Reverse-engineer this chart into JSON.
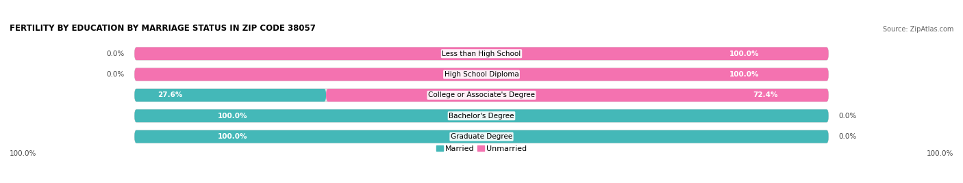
{
  "title": "FERTILITY BY EDUCATION BY MARRIAGE STATUS IN ZIP CODE 38057",
  "source": "Source: ZipAtlas.com",
  "categories": [
    "Less than High School",
    "High School Diploma",
    "College or Associate's Degree",
    "Bachelor's Degree",
    "Graduate Degree"
  ],
  "married": [
    0.0,
    0.0,
    27.6,
    100.0,
    100.0
  ],
  "unmarried": [
    100.0,
    100.0,
    72.4,
    0.0,
    0.0
  ],
  "married_color": "#44B8B8",
  "unmarried_color": "#F472B0",
  "unmarried_light_color": "#F8A8D0",
  "bar_bg_color": "#EBEBEB",
  "bar_bg_border": "#D8D8D8",
  "figsize": [
    14.06,
    2.68
  ],
  "dpi": 100,
  "title_fontsize": 8.5,
  "label_fontsize": 7.5,
  "cat_fontsize": 7.5,
  "legend_fontsize": 8,
  "axis_label_fontsize": 7.5
}
